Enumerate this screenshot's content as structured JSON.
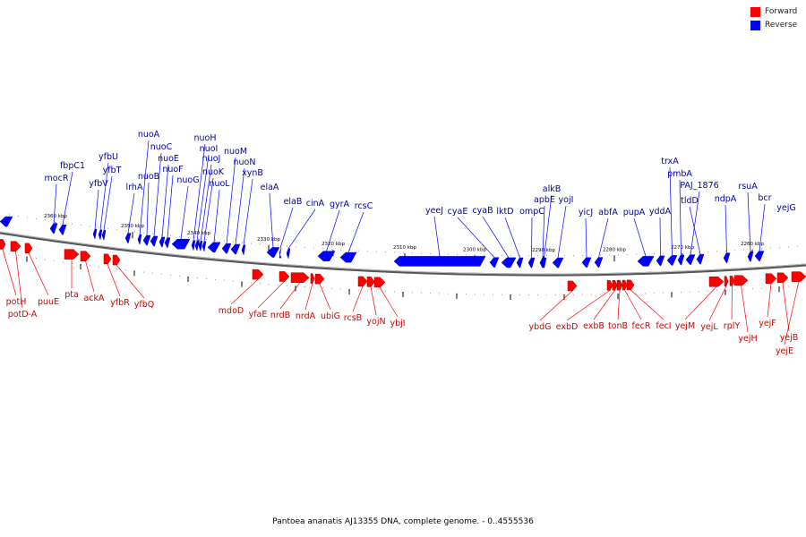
{
  "legend": {
    "forward_label": "Forward",
    "reverse_label": "Reverse",
    "forward_color": "#ff0000",
    "reverse_color": "#0000ff"
  },
  "caption": "Pantoea ananatis AJ13355 DNA, complete genome. - 0..4555536",
  "ruler": {
    "unit": "kbp",
    "ticks": [
      "2360 kbp",
      "2350 kbp",
      "2340 kbp",
      "2330 kbp",
      "2320 kbp",
      "2310 kbp",
      "2300 kbp",
      "2290 kbp",
      "2280 kbp",
      "2270 kbp",
      "2260 kbp"
    ]
  },
  "reverse_genes": [
    "mocR",
    "fbpC1",
    "yfbV",
    "yfbU",
    "yfbT",
    "lrhA",
    "nuoA",
    "nuoB",
    "nuoC",
    "nuoE",
    "nuoF",
    "nuoG",
    "nuoH",
    "nuoI",
    "nuoJ",
    "nuoK",
    "nuoL",
    "nuoM",
    "nuoN",
    "xynB",
    "elaA",
    "elaB",
    "cinA",
    "gyrA",
    "rcsC",
    "yeeJ",
    "cyaE",
    "cyaB",
    "lktD",
    "ompC",
    "apbE",
    "alkB",
    "yojI",
    "yicJ",
    "abfA",
    "pupA",
    "yddA",
    "trxA",
    "pmbA",
    "PAJ_1876",
    "tldD",
    "ndpA",
    "rsuA",
    "bcr",
    "yejG"
  ],
  "forward_genes": [
    "potH",
    "potD-A",
    "puuE",
    "pta",
    "ackA",
    "yfbR",
    "yfbQ",
    "mdoD",
    "yfaE",
    "nrdB",
    "nrdA",
    "ubiG",
    "rcsB",
    "yojN",
    "ybjI",
    "ybdG",
    "exbD",
    "exbB",
    "tonB",
    "fecR",
    "fecI",
    "yejM",
    "yejL",
    "rplY",
    "yejH",
    "yejF",
    "yejB",
    "yejE"
  ]
}
